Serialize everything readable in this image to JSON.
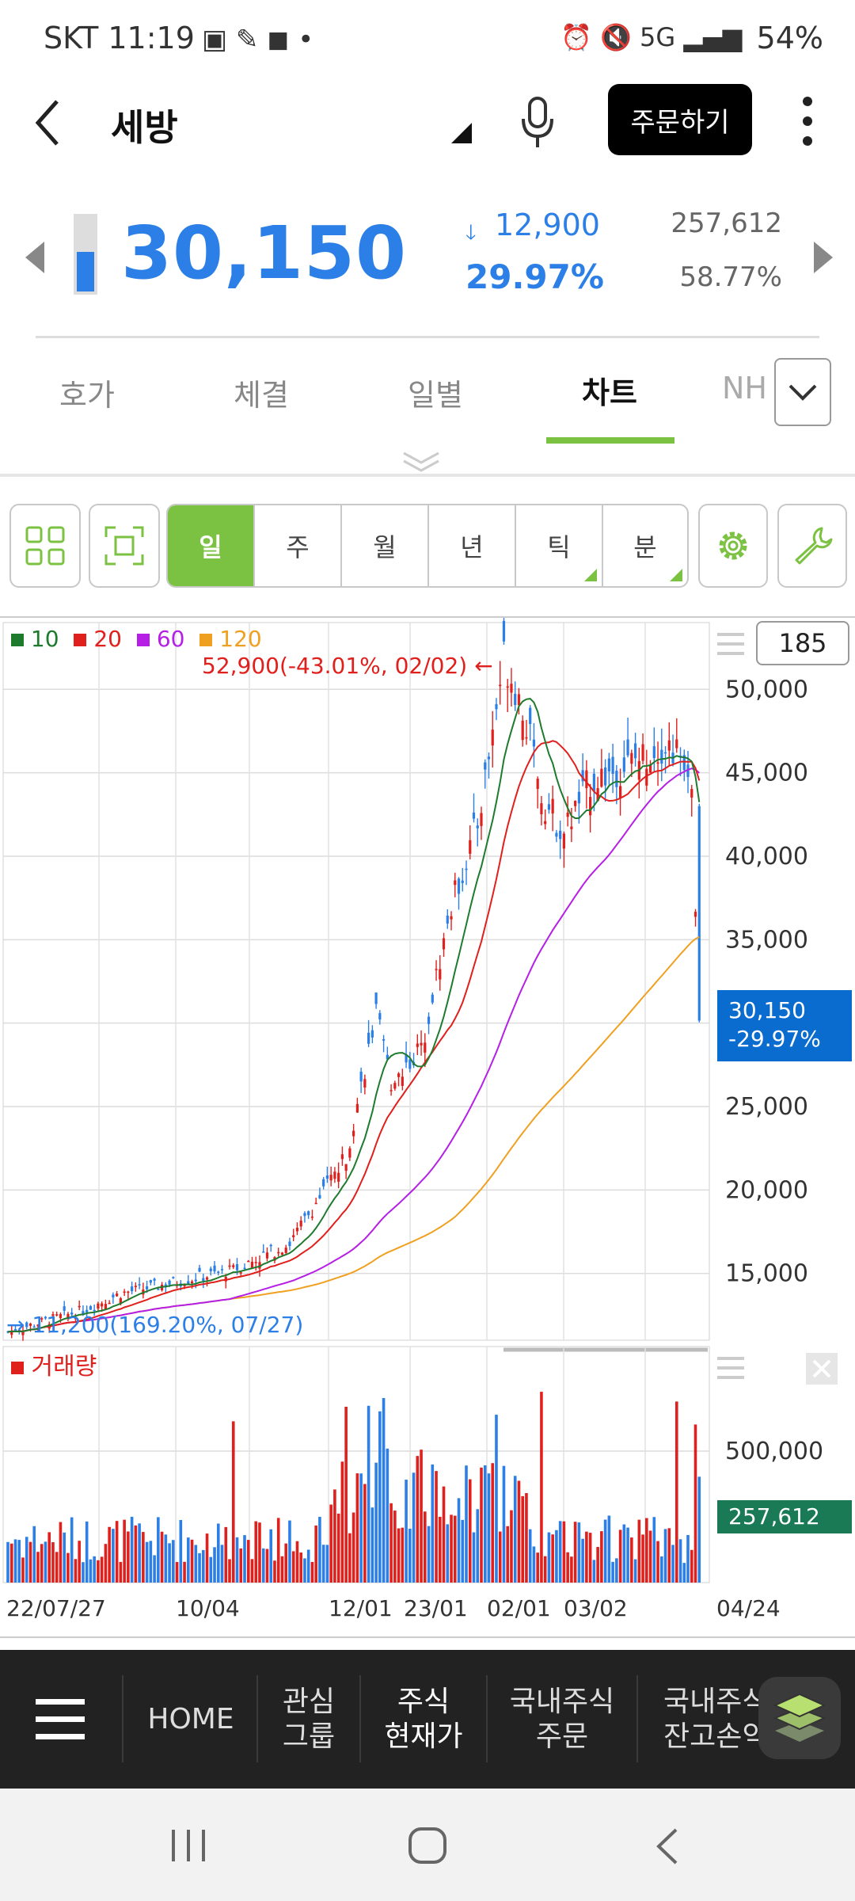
{
  "status_bar": {
    "carrier_time": "SKT 11:19",
    "battery": "54%"
  },
  "header": {
    "stock_name": "세방",
    "order_button": "주문하기"
  },
  "quote": {
    "price": "30,150",
    "change": "12,900",
    "change_rate": "29.97%",
    "volume": "257,612",
    "volume_ratio": "58.77%"
  },
  "tabs": [
    {
      "label": "호가"
    },
    {
      "label": "체결"
    },
    {
      "label": "일별"
    },
    {
      "label": "차트"
    },
    {
      "label": "NH"
    }
  ],
  "toolbar": {
    "periods": [
      {
        "label": "일"
      },
      {
        "label": "주"
      },
      {
        "label": "월"
      },
      {
        "label": "년"
      },
      {
        "label": "틱"
      },
      {
        "label": "분"
      }
    ],
    "count": "185"
  },
  "chart_legend": {
    "ma10": "10",
    "ma20": "20",
    "ma60": "60",
    "ma120": "120"
  },
  "chart_annotations": {
    "high": "52,900(-43.01%, 02/02)",
    "low": "11,200(169.20%, 07/27)",
    "current_price": "30,150",
    "current_rate": "-29.97%",
    "volume_title": "거래량",
    "volume_current": "257,612"
  },
  "chart_data": {
    "type": "candlestick",
    "price_axis_ticks": [
      "50,000",
      "45,000",
      "40,000",
      "35,000",
      "30,000",
      "25,000",
      "20,000",
      "15,000"
    ],
    "price_ylim": [
      11000,
      54000
    ],
    "volume_axis_ticks": [
      "500,000"
    ],
    "x_tick_labels": [
      "22/07/27",
      "10/04",
      "12/01",
      "23/01",
      "02/01",
      "03/02",
      "04/24"
    ],
    "series": [
      {
        "name": "10"
      },
      {
        "name": "20"
      },
      {
        "name": "60"
      },
      {
        "name": "120"
      }
    ],
    "colors": {
      "ma10": "#1e7b2e",
      "ma20": "#e0201c",
      "ma60": "#b51fe6",
      "ma120": "#f0a020",
      "up": "#e0201c",
      "down": "#2b7fe6"
    }
  },
  "bottom_nav": {
    "home": "HOME",
    "items": [
      {
        "line1": "관심",
        "line2": "그룹"
      },
      {
        "line1": "주식",
        "line2": "현재가"
      },
      {
        "line1": "국내주식",
        "line2": "주문"
      },
      {
        "line1": "국내주식",
        "line2": "잔고손익"
      }
    ]
  }
}
